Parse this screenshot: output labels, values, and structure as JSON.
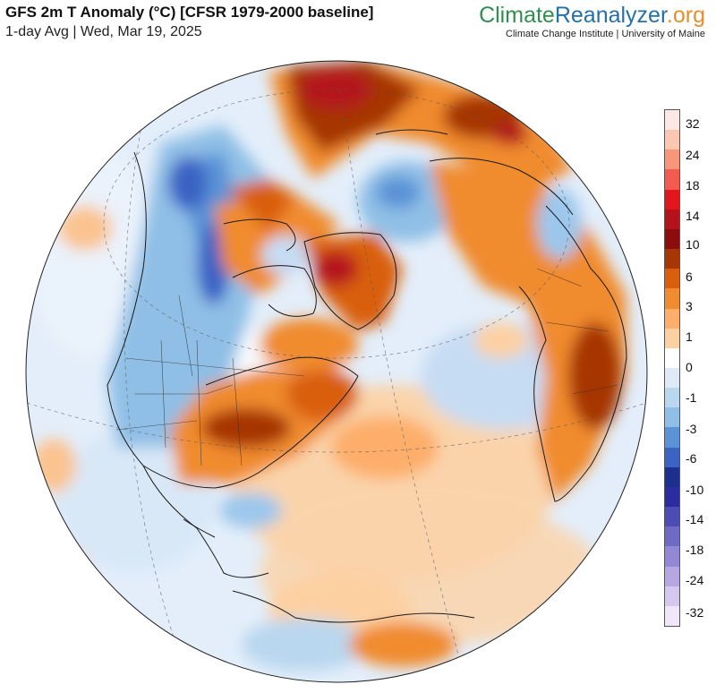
{
  "header": {
    "title": "GFS 2m T Anomaly (°C) [CFSR 1979-2000 baseline]",
    "subtitle": "1-day Avg | Wed, Mar 19, 2025"
  },
  "brand": {
    "part1": "Climate",
    "part2": "Reanalyzer",
    "part3": ".org",
    "affiliation": "Climate Change Institute | University of Maine",
    "colors": {
      "part1": "#2f8f4e",
      "part2": "#2470a8",
      "part3": "#e58e2a"
    }
  },
  "map": {
    "projection": "orthographic hemisphere centered on North Atlantic / North America",
    "variable": "2m temperature anomaly",
    "date": "Wed, Mar 19, 2025"
  },
  "legend": {
    "unit": "°C",
    "labels": [
      "32",
      "24",
      "18",
      "14",
      "10",
      "6",
      "3",
      "1",
      "0",
      "-1",
      "-3",
      "-6",
      "-10",
      "-14",
      "-18",
      "-24",
      "-32"
    ],
    "colors": [
      "#fde9e4",
      "#fbc7b3",
      "#f7977a",
      "#f45a4d",
      "#e3171b",
      "#b5121b",
      "#8c0d0d",
      "#a63603",
      "#d95f0e",
      "#f08b2f",
      "#fdae6b",
      "#fdd0a2",
      "#ffffff",
      "#deebf7",
      "#b9d7ef",
      "#8fbfe6",
      "#5a93d6",
      "#3b63c4",
      "#1c2f8f",
      "#2b2d9e",
      "#4d4bb4",
      "#6f6ac6",
      "#9488d6",
      "#b7a6e2",
      "#d6c7ee",
      "#f0e6f8"
    ]
  }
}
